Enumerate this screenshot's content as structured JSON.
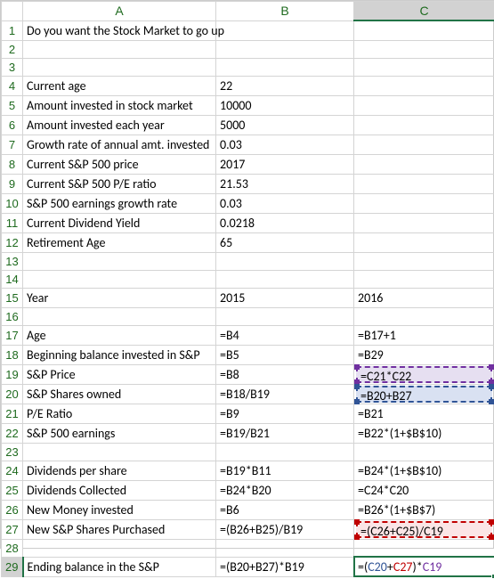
{
  "columns": [
    "A",
    "B",
    "C"
  ],
  "rows": [
    {
      "n": 1,
      "A": "Do you want the Stock Market to go up",
      "B": "",
      "C": ""
    },
    {
      "n": 2,
      "A": "",
      "B": "",
      "C": ""
    },
    {
      "n": 3,
      "A": "",
      "B": "",
      "C": ""
    },
    {
      "n": 4,
      "A": "Current age",
      "B": "22",
      "C": ""
    },
    {
      "n": 5,
      "A": "Amount invested in stock market",
      "B": "10000",
      "C": ""
    },
    {
      "n": 6,
      "A": "Amount invested each year",
      "B": "5000",
      "C": ""
    },
    {
      "n": 7,
      "A": "Growth rate of annual amt. invested",
      "B": "0.03",
      "C": ""
    },
    {
      "n": 8,
      "A": "Current S&P 500 price",
      "B": "2017",
      "C": ""
    },
    {
      "n": 9,
      "A": "Current S&P 500 P/E ratio",
      "B": "21.53",
      "C": ""
    },
    {
      "n": 10,
      "A": "S&P 500 earnings growth rate",
      "B": "0.03",
      "C": ""
    },
    {
      "n": 11,
      "A": "Current Dividend Yield",
      "B": "0.0218",
      "C": ""
    },
    {
      "n": 12,
      "A": "Retirement Age",
      "B": "65",
      "C": ""
    },
    {
      "n": 13,
      "A": "",
      "B": "",
      "C": ""
    },
    {
      "n": 14,
      "A": "",
      "B": "",
      "C": ""
    },
    {
      "n": 15,
      "A": "Year",
      "B": "2015",
      "C": "2016"
    },
    {
      "n": 16,
      "A": "",
      "B": "",
      "C": ""
    },
    {
      "n": 17,
      "A": "Age",
      "B": "=B4",
      "C": "=B17+1"
    },
    {
      "n": 18,
      "A": "Beginning balance invested in S&P",
      "B": "=B5",
      "C": "=B29"
    },
    {
      "n": 19,
      "A": "S&P Price",
      "B": "=B8",
      "C": "=C21*C22"
    },
    {
      "n": 20,
      "A": "S&P Shares owned",
      "B": "=B18/B19",
      "C": "=B20+B27"
    },
    {
      "n": 21,
      "A": "P/E Ratio",
      "B": "=B9",
      "C": "=B21"
    },
    {
      "n": 22,
      "A": "S&P 500 earnings",
      "B": "=B19/B21",
      "C": "=B22*(1+$B$10)"
    },
    {
      "n": 23,
      "A": "",
      "B": "",
      "C": ""
    },
    {
      "n": 24,
      "A": "Dividends per share",
      "B": "=B19*B11",
      "C": "=B24*(1+$B$10)"
    },
    {
      "n": 25,
      "A": "Dividends Collected",
      "B": "=B24*B20",
      "C": "=C24*C20"
    },
    {
      "n": 26,
      "A": "New Money invested",
      "B": "=B6",
      "C": "=B26*(1+$B$7)"
    },
    {
      "n": 27,
      "A": "New S&P Shares Purchased",
      "B": "=(B26+B25)/B19",
      "C": "=(C26+C25)/C19"
    },
    {
      "n": 28,
      "A": "",
      "B": "",
      "C": ""
    },
    {
      "n": 29,
      "A": "Ending balance in the S&P",
      "B": "=(B20+B27)*B19",
      "C": ""
    }
  ],
  "highlights": {
    "C19": {
      "border": "#7030a0",
      "fill": "#e6dff1"
    },
    "C20": {
      "border": "#305496",
      "fill": "#d9e1f2"
    },
    "C27": {
      "border": "#c00000",
      "fill": "#fbe5e6"
    }
  },
  "selection": {
    "row": 29,
    "col": "C"
  },
  "formula_in_edit": {
    "prefix": "=(",
    "ref1": {
      "text": "C20",
      "color": "#305496"
    },
    "mid": "+",
    "ref2": {
      "text": "C27",
      "color": "#c00000"
    },
    "mid2": ")*",
    "ref3": {
      "text": "C19",
      "color": "#7030a0"
    }
  }
}
